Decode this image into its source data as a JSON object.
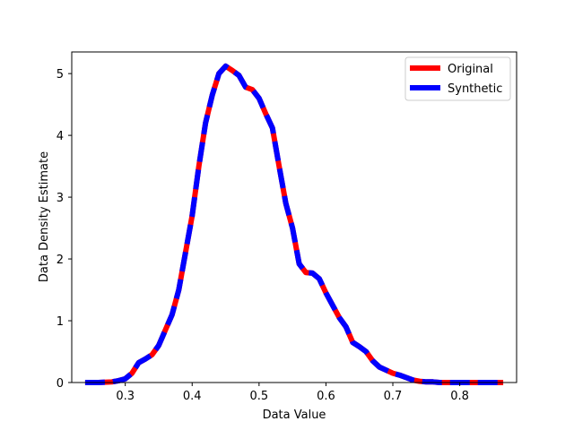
{
  "chart_data": {
    "type": "line",
    "title": "",
    "xlabel": "Data Value",
    "ylabel": "Data Density Estimate",
    "xlim": [
      0.22,
      0.885
    ],
    "ylim": [
      0,
      5.35
    ],
    "xticks": [
      "0.3",
      "0.4",
      "0.5",
      "0.6",
      "0.7",
      "0.8"
    ],
    "yticks": [
      "0",
      "1",
      "2",
      "3",
      "4",
      "5"
    ],
    "grid": false,
    "legend": {
      "position": "top-right",
      "entries": [
        "Original",
        "Synthetic"
      ]
    },
    "x": [
      0.24,
      0.26,
      0.28,
      0.29,
      0.3,
      0.31,
      0.32,
      0.33,
      0.34,
      0.35,
      0.36,
      0.37,
      0.38,
      0.39,
      0.4,
      0.41,
      0.42,
      0.43,
      0.44,
      0.45,
      0.46,
      0.47,
      0.48,
      0.49,
      0.5,
      0.51,
      0.52,
      0.53,
      0.54,
      0.55,
      0.56,
      0.57,
      0.58,
      0.59,
      0.6,
      0.61,
      0.62,
      0.63,
      0.64,
      0.65,
      0.66,
      0.67,
      0.68,
      0.69,
      0.7,
      0.71,
      0.72,
      0.73,
      0.74,
      0.75,
      0.76,
      0.77,
      0.78,
      0.79,
      0.8,
      0.82,
      0.84,
      0.865
    ],
    "series": [
      {
        "name": "Original",
        "color": "#ff0000",
        "values": [
          0.0,
          0.0,
          0.01,
          0.03,
          0.06,
          0.15,
          0.32,
          0.38,
          0.45,
          0.6,
          0.85,
          1.1,
          1.5,
          2.1,
          2.7,
          3.5,
          4.2,
          4.65,
          5.0,
          5.12,
          5.05,
          4.97,
          4.78,
          4.74,
          4.6,
          4.35,
          4.12,
          3.5,
          2.9,
          2.5,
          1.92,
          1.78,
          1.77,
          1.68,
          1.45,
          1.25,
          1.05,
          0.9,
          0.65,
          0.58,
          0.5,
          0.35,
          0.25,
          0.2,
          0.15,
          0.12,
          0.08,
          0.04,
          0.02,
          0.01,
          0.01,
          0.0,
          0.0,
          0.0,
          0.0,
          0.0,
          0.0,
          0.0
        ]
      },
      {
        "name": "Synthetic",
        "color": "#0000ff",
        "values": [
          0.0,
          0.0,
          0.01,
          0.03,
          0.06,
          0.15,
          0.32,
          0.38,
          0.45,
          0.6,
          0.85,
          1.1,
          1.5,
          2.1,
          2.7,
          3.5,
          4.2,
          4.65,
          5.0,
          5.12,
          5.05,
          4.97,
          4.78,
          4.74,
          4.6,
          4.35,
          4.12,
          3.5,
          2.9,
          2.5,
          1.92,
          1.78,
          1.77,
          1.68,
          1.45,
          1.25,
          1.05,
          0.9,
          0.65,
          0.58,
          0.5,
          0.35,
          0.25,
          0.2,
          0.15,
          0.12,
          0.08,
          0.04,
          0.02,
          0.01,
          0.01,
          0.0,
          0.0,
          0.0,
          0.0,
          0.0,
          0.0,
          0.0
        ]
      }
    ]
  }
}
